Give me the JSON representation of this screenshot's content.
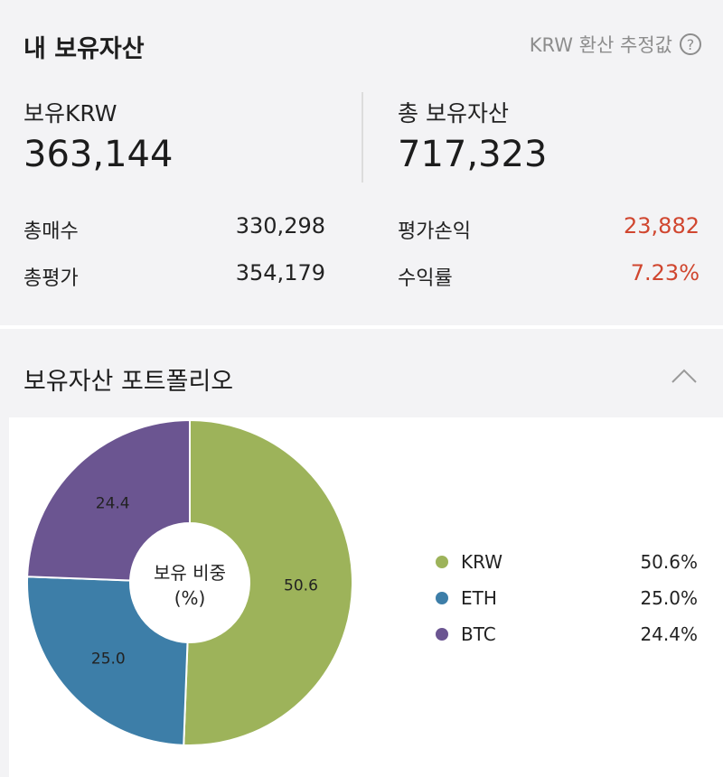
{
  "summary": {
    "title": "내 보유자산",
    "estimate_label": "KRW 환산 추정값",
    "help_glyph": "?",
    "krw_label": "보유KRW",
    "krw_value": "363,144",
    "total_label": "총 보유자산",
    "total_value": "717,323",
    "rows": [
      {
        "label": "총매수",
        "value": "330,298"
      },
      {
        "label": "총평가",
        "value": "354,179"
      },
      {
        "label": "평가손익",
        "value": "23,882"
      },
      {
        "label": "수익률",
        "value": "7.23%"
      }
    ]
  },
  "portfolio": {
    "title": "보유자산 포트폴리오",
    "center_line1": "보유 비중",
    "center_line2": "(%)",
    "legend": [
      {
        "name": "KRW",
        "value": "50.6%"
      },
      {
        "name": "ETH",
        "value": "25.0%"
      },
      {
        "name": "BTC",
        "value": "24.4%"
      }
    ]
  },
  "chart_data": {
    "type": "pie",
    "categories": [
      "KRW",
      "ETH",
      "BTC"
    ],
    "values": [
      50.6,
      25.0,
      24.4
    ],
    "labels": [
      "50.6",
      "25.0",
      "24.4"
    ],
    "colors": [
      "#9db35a",
      "#3d7ea8",
      "#6b5591"
    ],
    "donut": true
  },
  "colors": {
    "accent_red": "#d0462f"
  },
  "icons": {
    "help": "question-circle-icon",
    "collapse": "chevron-up-icon"
  }
}
